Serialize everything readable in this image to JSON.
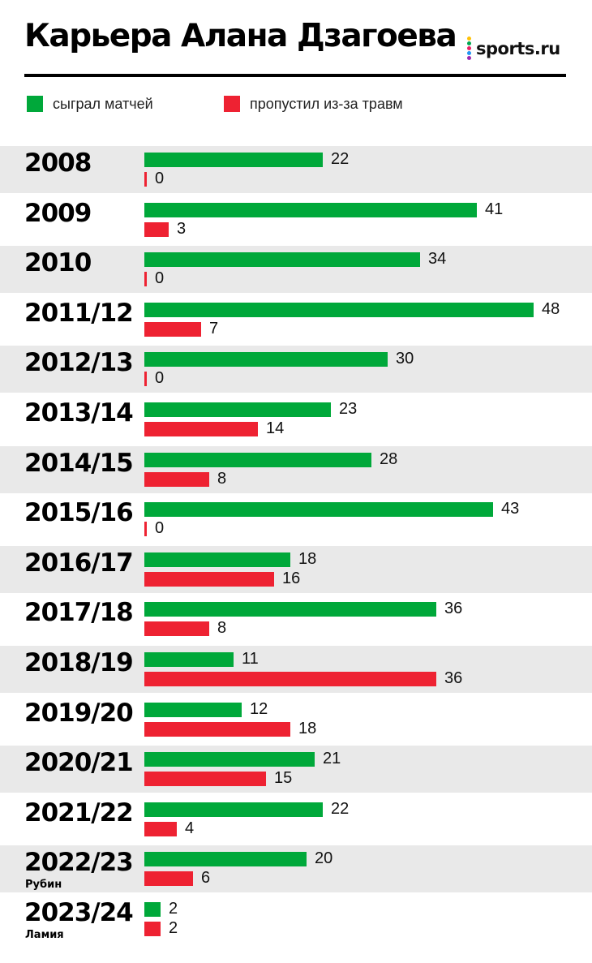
{
  "title": "Карьера Алана Дзагоева",
  "logo": {
    "text": "sports.ru",
    "dot_colors": [
      "#ffc107",
      "#00a651",
      "#e91e63",
      "#2196f3",
      "#9c27b0"
    ]
  },
  "colors": {
    "played": "#00a83a",
    "injured": "#ee2232",
    "row_alt": "#e9e9e9"
  },
  "legend": {
    "played": "сыграл матчей",
    "injured": "пропустил из-за травм"
  },
  "chart_data": {
    "type": "bar",
    "orientation": "horizontal",
    "title": "Карьера Алана Дзагоева",
    "categories": [
      "2008",
      "2009",
      "2010",
      "2011/12",
      "2012/13",
      "2013/14",
      "2014/15",
      "2015/16",
      "2016/17",
      "2017/18",
      "2018/19",
      "2019/20",
      "2020/21",
      "2021/22",
      "2022/23",
      "2023/24"
    ],
    "sub_labels": [
      "",
      "",
      "",
      "",
      "",
      "",
      "",
      "",
      "",
      "",
      "",
      "",
      "",
      "",
      "Рубин",
      "Ламия"
    ],
    "series": [
      {
        "name": "сыграл матчей",
        "color": "#00a83a",
        "values": [
          22,
          41,
          34,
          48,
          30,
          23,
          28,
          43,
          18,
          36,
          11,
          12,
          21,
          22,
          20,
          2
        ]
      },
      {
        "name": "пропустил из-за травм",
        "color": "#ee2232",
        "values": [
          0,
          3,
          0,
          7,
          0,
          14,
          8,
          0,
          16,
          8,
          36,
          18,
          15,
          4,
          6,
          2
        ]
      }
    ],
    "legend_position": "top-left",
    "grid": false
  }
}
